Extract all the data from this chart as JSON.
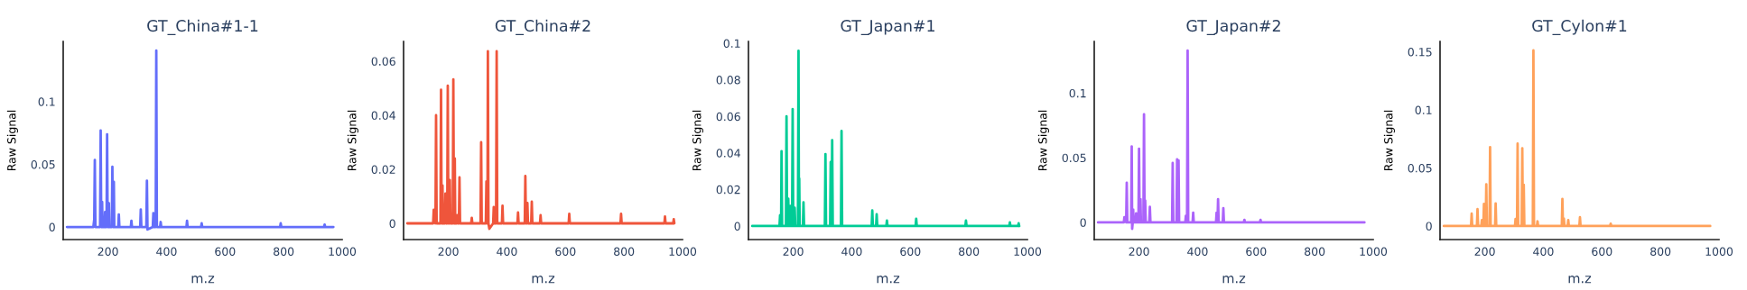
{
  "chart_data": [
    {
      "type": "line",
      "title": "GT_China#1-1",
      "xlabel": "m.z",
      "ylabel": "Raw Signal",
      "xlim": [
        47,
        1000
      ],
      "xticks": [
        200,
        400,
        600,
        800,
        1000
      ],
      "ylim": [
        -0.01,
        0.148
      ],
      "yticks": [
        0,
        0.05,
        0.1
      ],
      "series": [
        {
          "color": "#636efa",
          "x": [
            60,
            150,
            153,
            155,
            157,
            173,
            175,
            177,
            178.5,
            180,
            181.5,
            188,
            190,
            192,
            195,
            197,
            199,
            201.5,
            203,
            204.5,
            213,
            215,
            216.5,
            218.5,
            220,
            221.5,
            235,
            237,
            239,
            278,
            280,
            282,
            310,
            312,
            314,
            331,
            333,
            335,
            353,
            355,
            357,
            363,
            365,
            367,
            378,
            380,
            382,
            468,
            470,
            472,
            518,
            520,
            522,
            788,
            790,
            792,
            938,
            940,
            942,
            970
          ],
          "values": [
            0,
            0,
            0.006,
            0.0535,
            0,
            0,
            0.077,
            0,
            0,
            0.02,
            0,
            0,
            0.012,
            0,
            0,
            0.074,
            0,
            0,
            0.019,
            0,
            0,
            0.048,
            0,
            0,
            0.036,
            0,
            0,
            0.01,
            0,
            0,
            0.005,
            0,
            0,
            0.014,
            0,
            0,
            0.037,
            -0.002,
            0,
            0.011,
            0,
            0,
            0.1408,
            0,
            0,
            0.004,
            0,
            0,
            0.005,
            0,
            0,
            0.003,
            0,
            0,
            0.003,
            0,
            0,
            0.002,
            0,
            0
          ]
        }
      ]
    },
    {
      "type": "line",
      "title": "GT_China#2",
      "xlabel": "m.z",
      "ylabel": "Raw Signal",
      "xlim": [
        47,
        1000
      ],
      "xticks": [
        200,
        400,
        600,
        800,
        1000
      ],
      "ylim": [
        -0.006,
        0.0673
      ],
      "yticks": [
        0,
        0.02,
        0.04,
        0.06
      ],
      "series": [
        {
          "color": "#ef553b",
          "x": [
            60,
            148,
            150,
            156,
            158,
            160,
            173,
            175,
            177,
            178.5,
            180,
            181.5,
            188,
            190,
            192,
            196,
            198,
            200,
            203,
            205,
            207,
            215,
            217,
            219,
            220.5,
            222,
            223.5,
            228,
            230,
            232,
            236,
            238,
            240,
            278,
            280,
            282,
            310,
            312,
            314,
            328,
            330,
            332,
            333.5,
            335,
            337,
            340,
            353,
            355,
            357,
            363,
            365,
            367,
            383,
            385,
            387,
            436,
            438,
            440,
            461,
            463,
            465,
            468,
            470,
            472,
            483,
            485,
            487,
            513,
            515,
            517,
            611,
            613,
            615,
            788,
            790,
            792,
            938,
            940,
            942,
            968,
            970,
            972
          ],
          "values": [
            0,
            0,
            0.005,
            0,
            0.04,
            0,
            0,
            0.0494,
            0,
            0,
            0.014,
            0,
            0,
            0.011,
            0,
            0,
            0.0509,
            0,
            0,
            0.016,
            0,
            0,
            0.0533,
            0,
            0,
            0.024,
            0,
            0,
            0.003,
            0,
            0,
            0.017,
            0,
            0,
            0.002,
            0,
            0,
            0.03,
            0,
            0,
            0.0155,
            0,
            0,
            0.0637,
            0,
            -0.002,
            0,
            0.006,
            0,
            0,
            0.0637,
            0,
            0,
            0.0065,
            0,
            0,
            0.004,
            0,
            0,
            0.0175,
            0,
            0,
            0.0075,
            0,
            0,
            0.008,
            0,
            0,
            0.003,
            0,
            0,
            0.0035,
            0,
            0,
            0.0035,
            0,
            0,
            0.0025,
            0,
            0,
            0.0015,
            0
          ]
        }
      ]
    },
    {
      "type": "line",
      "title": "GT_Japan#1",
      "xlabel": "m.z",
      "ylabel": "Raw Signal",
      "xlim": [
        47,
        1000
      ],
      "xticks": [
        200,
        400,
        600,
        800,
        1000
      ],
      "ylim": [
        -0.0074,
        0.101
      ],
      "yticks": [
        0,
        0.02,
        0.04,
        0.06,
        0.08,
        0.1
      ],
      "series": [
        {
          "color": "#00cc96",
          "x": [
            60,
            153,
            155,
            157,
            158.5,
            160,
            162,
            175,
            177,
            179,
            181,
            183,
            185,
            188,
            190,
            192,
            196,
            198,
            200,
            203,
            205,
            207,
            216,
            218,
            219.5,
            220.5,
            222,
            233,
            235,
            237,
            308,
            310,
            312,
            326,
            328,
            330,
            331,
            333,
            335,
            363,
            365,
            367,
            468,
            470,
            472,
            483,
            485,
            487,
            518,
            520,
            522,
            618,
            620,
            622,
            788,
            790,
            792,
            938,
            940,
            942,
            968,
            970,
            972
          ],
          "values": [
            0,
            0,
            0.006,
            0,
            0,
            0.041,
            0,
            0,
            0.06,
            0,
            0,
            0.015,
            0,
            0,
            0.011,
            0,
            0,
            0.064,
            0,
            0,
            0.01,
            0,
            0,
            0.0959,
            0,
            0.026,
            0,
            0,
            0.013,
            0,
            0,
            0.0394,
            0,
            0,
            0.035,
            0,
            0,
            0.047,
            0,
            0,
            0.052,
            0,
            0,
            0.0085,
            0,
            0,
            0.0065,
            0,
            0,
            0.003,
            0,
            0,
            0.004,
            0,
            0,
            0.003,
            0,
            0,
            0.002,
            0,
            0,
            0.0015,
            0
          ]
        }
      ]
    },
    {
      "type": "line",
      "title": "GT_Japan#2",
      "xlabel": "m.z",
      "ylabel": "Raw Signal",
      "xlim": [
        47,
        1000
      ],
      "xticks": [
        200,
        400,
        600,
        800,
        1000
      ],
      "ylim": [
        -0.0133,
        0.14
      ],
      "yticks": [
        0,
        0.05,
        0.1
      ],
      "series": [
        {
          "color": "#ab63fa",
          "x": [
            60,
            148,
            150,
            156,
            158,
            160,
            173,
            175,
            176.5,
            178.5,
            180,
            181.5,
            188,
            190,
            192,
            198,
            200,
            202,
            203.5,
            205,
            206.5,
            215,
            217,
            219,
            220,
            221,
            223,
            235,
            237,
            239,
            313,
            315,
            317,
            328,
            330,
            332,
            333,
            335,
            337,
            358,
            360,
            362,
            364,
            366,
            368,
            383,
            385,
            387,
            463,
            465,
            467,
            468,
            470,
            472,
            486,
            488,
            490,
            558,
            560,
            562,
            613,
            615,
            617,
            970
          ],
          "values": [
            0,
            0,
            0.004,
            0,
            0.0307,
            0,
            0,
            0.0588,
            -0.005,
            0,
            0.01,
            0,
            0,
            0.007,
            0,
            0,
            0.057,
            0,
            0,
            0.018,
            0,
            0,
            0.0837,
            0,
            0,
            0.017,
            0,
            0,
            0.012,
            0,
            0,
            0.046,
            0,
            0,
            0.0488,
            0,
            0,
            0.048,
            0,
            0,
            0.005,
            0,
            0,
            0.133,
            0,
            0,
            0.0075,
            0,
            0,
            0.0075,
            0,
            0,
            0.018,
            0,
            0,
            0.011,
            0,
            0,
            0.002,
            0,
            0,
            0.002,
            0,
            0
          ]
        }
      ]
    },
    {
      "type": "line",
      "title": "GT_Cylon#1",
      "xlabel": "m.z",
      "ylabel": "Raw Signal",
      "xlim": [
        47,
        1000
      ],
      "xticks": [
        200,
        400,
        600,
        800,
        1000
      ],
      "ylim": [
        -0.0117,
        0.159
      ],
      "yticks": [
        0,
        0.05,
        0.1,
        0.15
      ],
      "series": [
        {
          "color": "#ffa15a",
          "x": [
            60,
            153,
            155,
            157,
            173,
            175,
            177,
            188,
            190,
            192,
            195,
            197,
            199,
            203,
            205,
            207,
            216,
            218,
            220,
            235,
            237,
            239,
            303,
            305,
            307,
            310,
            312,
            314,
            326,
            328,
            330,
            331,
            333,
            335,
            364,
            366,
            368,
            378,
            380,
            382,
            463,
            465,
            467,
            468,
            470,
            472,
            483,
            485,
            487,
            523,
            525,
            527,
            628,
            630,
            632,
            970
          ],
          "values": [
            0,
            0,
            0.0106,
            0,
            0,
            0.0145,
            0,
            0,
            0.005,
            0,
            0,
            0.019,
            0,
            0,
            0.036,
            0,
            0,
            0.068,
            0,
            0,
            0.0195,
            0,
            0,
            0.006,
            0,
            0,
            0.071,
            0,
            0,
            0.067,
            0,
            0,
            0.0355,
            0,
            0,
            0.1513,
            0,
            0,
            0.004,
            0,
            0,
            0.0233,
            0,
            0,
            0.0065,
            0,
            0,
            0.005,
            0,
            0,
            0.0075,
            0,
            0,
            0.002,
            0,
            0
          ]
        }
      ]
    }
  ]
}
